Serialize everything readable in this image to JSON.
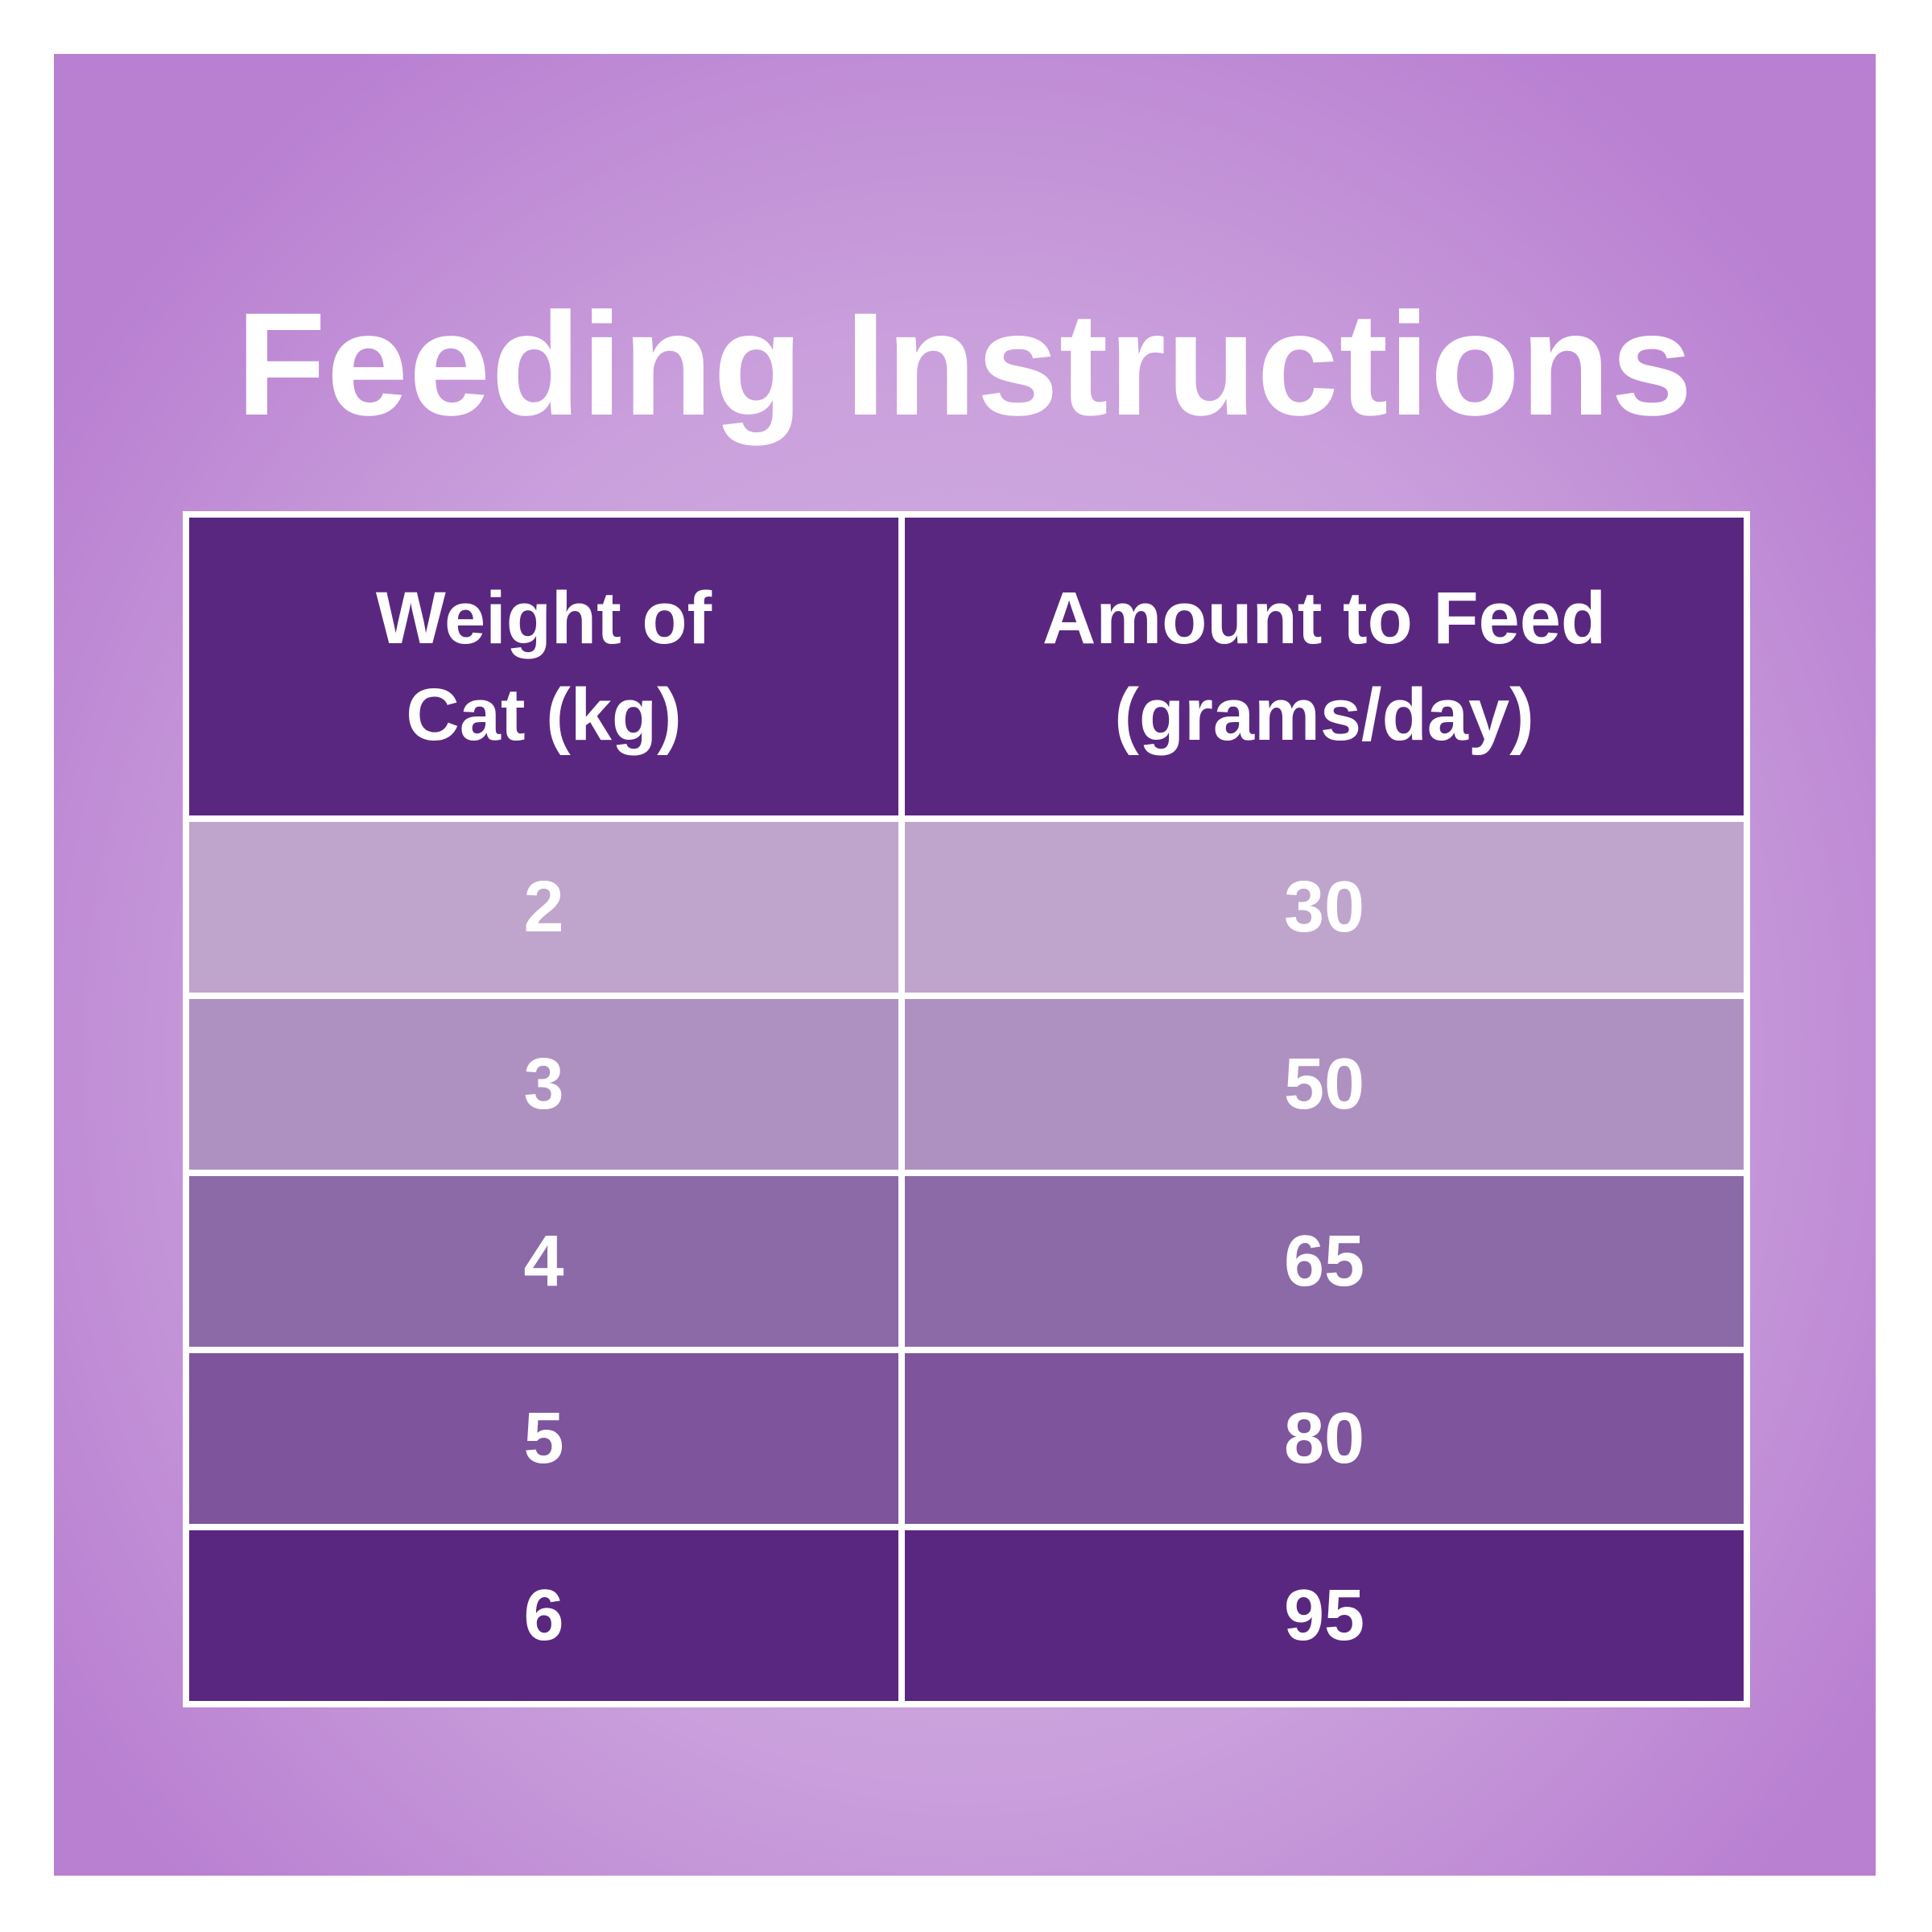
{
  "header": {
    "title": "Feeding Instructions"
  },
  "table": {
    "columns": [
      "Weight of Cat (kg)",
      "Amount to Feed (grams/day)"
    ],
    "rows": [
      [
        2,
        30
      ],
      [
        3,
        50
      ],
      [
        4,
        65
      ],
      [
        5,
        80
      ],
      [
        6,
        95
      ]
    ]
  }
}
